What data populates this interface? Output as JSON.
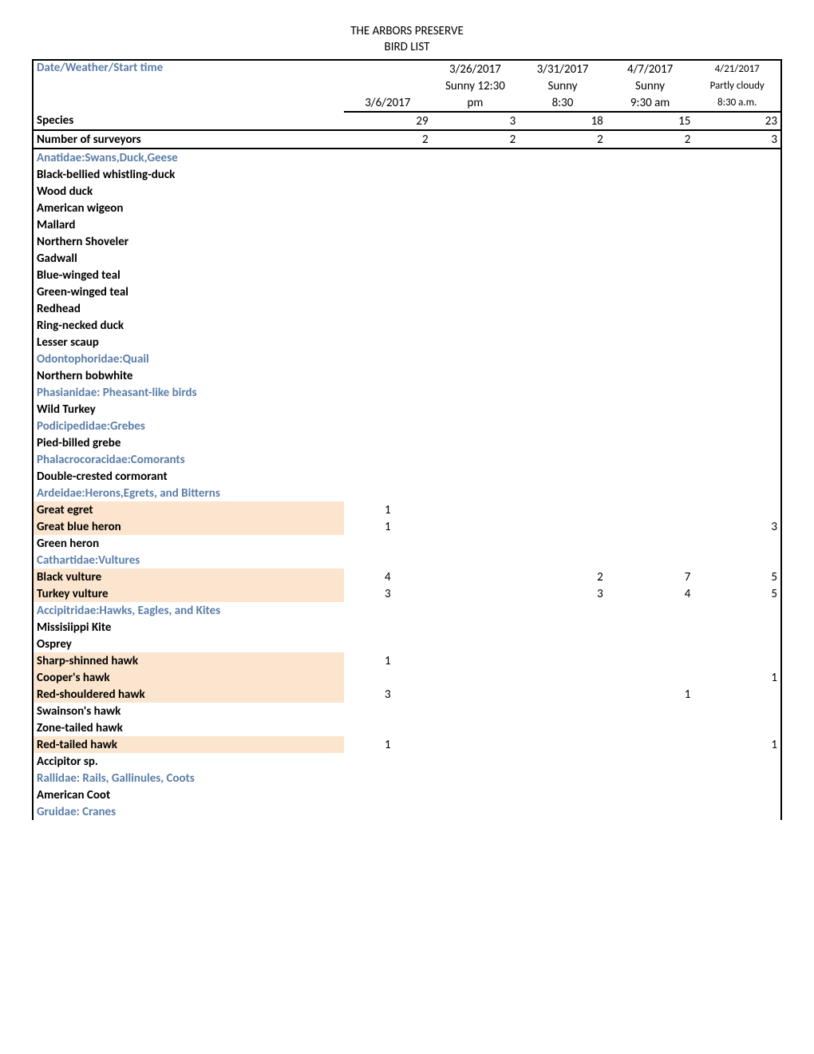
{
  "title": "THE ARBORS PRESERVE",
  "subtitle": "BIRD LIST",
  "header": {
    "row_label": "Date/Weather/Start time",
    "dates": [
      "3/6/2017",
      "3/26/2017",
      "3/31/2017",
      "4/7/2017",
      "4/21/2017"
    ],
    "weather": [
      "",
      "Sunny 12:30 pm",
      "Sunny 8:30",
      "Sunny 9:30 am",
      "Partly cloudy 8:30 a.m."
    ]
  },
  "species_row": {
    "label": "Species",
    "values": [
      "29",
      "3",
      "18",
      "15",
      "23"
    ]
  },
  "surveyors_row": {
    "label": "Number of surveyors",
    "values": [
      "2",
      "2",
      "2",
      "2",
      "3"
    ]
  },
  "rows": [
    {
      "type": "family",
      "label": "Anatidae:Swans,Duck,Geese"
    },
    {
      "type": "species",
      "label": "Black-bellied whistling-duck",
      "hl": false,
      "v": [
        "",
        "",
        "",
        "",
        ""
      ]
    },
    {
      "type": "species",
      "label": "Wood duck",
      "hl": false,
      "v": [
        "",
        "",
        "",
        "",
        ""
      ]
    },
    {
      "type": "species",
      "label": "American wigeon",
      "hl": false,
      "v": [
        "",
        "",
        "",
        "",
        ""
      ]
    },
    {
      "type": "species",
      "label": "Mallard",
      "hl": false,
      "v": [
        "",
        "",
        "",
        "",
        ""
      ]
    },
    {
      "type": "species",
      "label": "Northern Shoveler",
      "hl": false,
      "v": [
        "",
        "",
        "",
        "",
        ""
      ]
    },
    {
      "type": "species",
      "label": "Gadwall",
      "hl": false,
      "v": [
        "",
        "",
        "",
        "",
        ""
      ]
    },
    {
      "type": "species",
      "label": "Blue-winged teal",
      "hl": false,
      "v": [
        "",
        "",
        "",
        "",
        ""
      ]
    },
    {
      "type": "species",
      "label": "Green-winged teal",
      "hl": false,
      "v": [
        "",
        "",
        "",
        "",
        ""
      ]
    },
    {
      "type": "species",
      "label": "Redhead",
      "hl": false,
      "v": [
        "",
        "",
        "",
        "",
        ""
      ]
    },
    {
      "type": "species",
      "label": "Ring-necked duck",
      "hl": false,
      "v": [
        "",
        "",
        "",
        "",
        ""
      ]
    },
    {
      "type": "species",
      "label": "Lesser scaup",
      "hl": false,
      "v": [
        "",
        "",
        "",
        "",
        ""
      ]
    },
    {
      "type": "family",
      "label": "Odontophoridae:Quail"
    },
    {
      "type": "species",
      "label": "Northern bobwhite",
      "hl": false,
      "v": [
        "",
        "",
        "",
        "",
        ""
      ]
    },
    {
      "type": "family",
      "label": "Phasianidae: Pheasant-like birds"
    },
    {
      "type": "species",
      "label": "Wild Turkey",
      "hl": false,
      "v": [
        "",
        "",
        "",
        "",
        ""
      ]
    },
    {
      "type": "family",
      "label": "Podicipedidae:Grebes"
    },
    {
      "type": "species",
      "label": "Pied-billed grebe",
      "hl": false,
      "v": [
        "",
        "",
        "",
        "",
        ""
      ]
    },
    {
      "type": "family",
      "label": "Phalacrocoracidae:Comorants"
    },
    {
      "type": "species",
      "label": "Double-crested cormorant",
      "hl": false,
      "v": [
        "",
        "",
        "",
        "",
        ""
      ]
    },
    {
      "type": "family",
      "label": "Ardeidae:Herons,Egrets, and Bitterns"
    },
    {
      "type": "species",
      "label": "Great egret",
      "hl": true,
      "v": [
        "1",
        "",
        "",
        "",
        ""
      ]
    },
    {
      "type": "species",
      "label": "Great blue heron",
      "hl": true,
      "v": [
        "1",
        "",
        "",
        "",
        "3"
      ]
    },
    {
      "type": "species",
      "label": "Green heron",
      "hl": false,
      "v": [
        "",
        "",
        "",
        "",
        ""
      ]
    },
    {
      "type": "family",
      "label": "Cathartidae:Vultures"
    },
    {
      "type": "species",
      "label": "Black vulture",
      "hl": true,
      "v": [
        "4",
        "",
        "2",
        "7",
        "5"
      ]
    },
    {
      "type": "species",
      "label": "Turkey vulture",
      "hl": true,
      "v": [
        "3",
        "",
        "3",
        "4",
        "5"
      ]
    },
    {
      "type": "family",
      "label": "Accipitridae:Hawks, Eagles, and Kites"
    },
    {
      "type": "species",
      "label": "Missisiippi Kite",
      "hl": false,
      "v": [
        "",
        "",
        "",
        "",
        ""
      ]
    },
    {
      "type": "species",
      "label": "Osprey",
      "hl": false,
      "v": [
        "",
        "",
        "",
        "",
        ""
      ]
    },
    {
      "type": "species",
      "label": "Sharp-shinned hawk",
      "hl": true,
      "v": [
        "1",
        "",
        "",
        "",
        ""
      ]
    },
    {
      "type": "species",
      "label": "Cooper's hawk",
      "hl": true,
      "v": [
        "",
        "",
        "",
        "",
        "1"
      ]
    },
    {
      "type": "species",
      "label": "Red-shouldered hawk",
      "hl": true,
      "v": [
        "3",
        "",
        "",
        "1",
        ""
      ]
    },
    {
      "type": "species",
      "label": "Swainson's hawk",
      "hl": false,
      "v": [
        "",
        "",
        "",
        "",
        ""
      ]
    },
    {
      "type": "species",
      "label": "Zone-tailed hawk",
      "hl": false,
      "v": [
        "",
        "",
        "",
        "",
        ""
      ]
    },
    {
      "type": "species",
      "label": "Red-tailed hawk",
      "hl": true,
      "v": [
        "1",
        "",
        "",
        "",
        "1"
      ]
    },
    {
      "type": "species",
      "label": "Accipitor sp.",
      "hl": false,
      "v": [
        "",
        "",
        "",
        "",
        ""
      ]
    },
    {
      "type": "family",
      "label": "Rallidae: Rails, Gallinules, Coots"
    },
    {
      "type": "species",
      "label": "American Coot",
      "hl": false,
      "v": [
        "",
        "",
        "",
        "",
        ""
      ]
    },
    {
      "type": "family",
      "label": "Gruidae: Cranes"
    }
  ]
}
